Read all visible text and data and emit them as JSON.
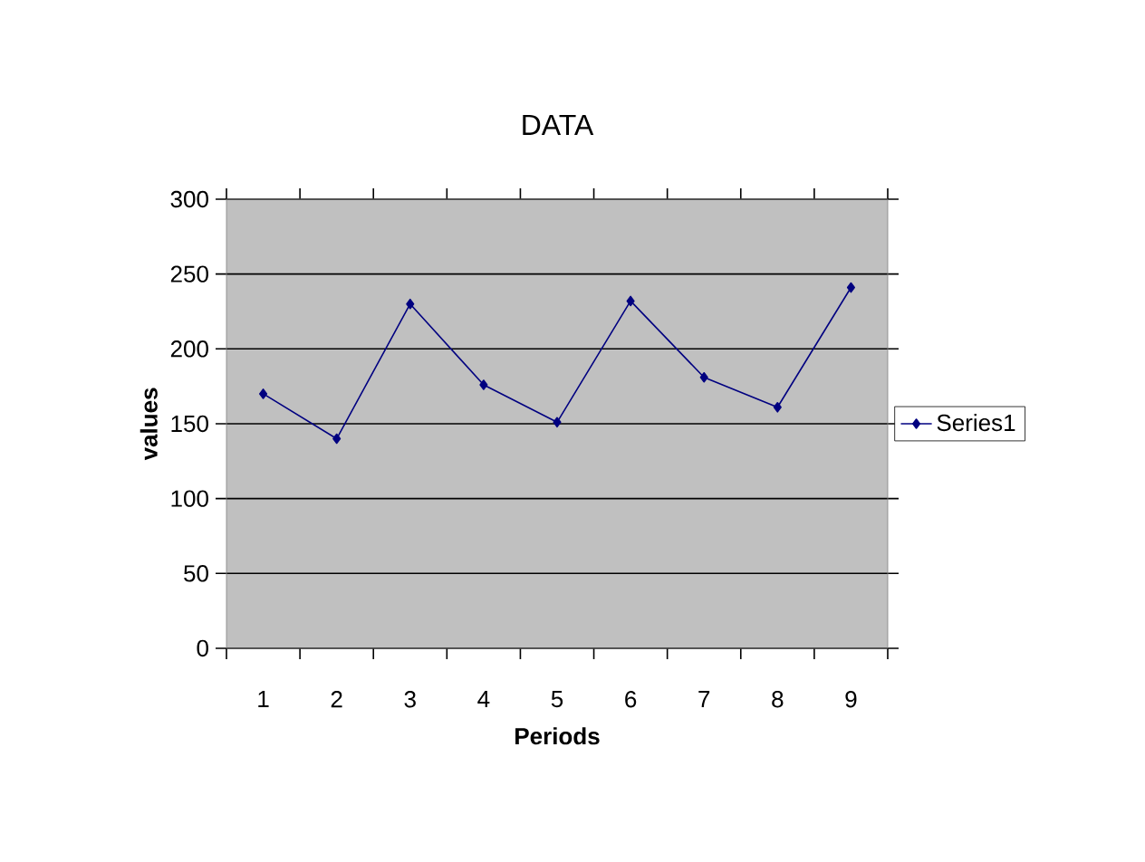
{
  "chart_data": {
    "type": "line",
    "title": "DATA",
    "xlabel": "Periods",
    "ylabel": "values",
    "categories": [
      "1",
      "2",
      "3",
      "4",
      "5",
      "6",
      "7",
      "8",
      "9"
    ],
    "series": [
      {
        "name": "Series1",
        "color": "#000080",
        "values": [
          170,
          140,
          230,
          176,
          151,
          232,
          181,
          161,
          241
        ]
      }
    ],
    "ylim": [
      0,
      300
    ],
    "yticks": [
      0,
      50,
      100,
      150,
      200,
      250,
      300
    ],
    "grid": "y",
    "legend": "right",
    "marker": "diamond",
    "line_style": "solid"
  }
}
